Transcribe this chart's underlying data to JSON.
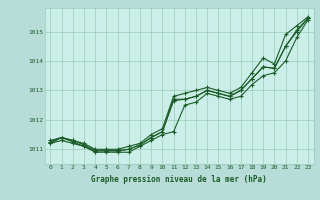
{
  "title": "Graphe pression niveau de la mer (hPa)",
  "background_color": "#b8ddd8",
  "plot_background": "#cceee8",
  "grid_color": "#99ccbb",
  "line_color": "#1a5c28",
  "xlim": [
    -0.5,
    23.5
  ],
  "ylim": [
    1010.5,
    1015.8
  ],
  "yticks": [
    1011,
    1012,
    1013,
    1014,
    1015
  ],
  "x_labels": [
    "0",
    "1",
    "2",
    "3",
    "4",
    "5",
    "6",
    "7",
    "8",
    "9",
    "10",
    "11",
    "12",
    "13",
    "14",
    "15",
    "16",
    "17",
    "18",
    "19",
    "20",
    "21",
    "22",
    "23"
  ],
  "series_min": [
    1011.2,
    1011.3,
    1011.2,
    1011.1,
    1010.9,
    1010.9,
    1010.9,
    1010.9,
    1011.1,
    1011.3,
    1011.5,
    1011.6,
    1012.5,
    1012.6,
    1012.9,
    1012.8,
    1012.7,
    1012.8,
    1013.2,
    1013.5,
    1013.6,
    1014.0,
    1014.8,
    1015.4
  ],
  "series_max": [
    1011.3,
    1011.4,
    1011.3,
    1011.2,
    1011.0,
    1011.0,
    1011.0,
    1011.1,
    1011.2,
    1011.5,
    1011.7,
    1012.8,
    1012.9,
    1013.0,
    1013.1,
    1013.0,
    1012.9,
    1013.1,
    1013.6,
    1014.1,
    1013.9,
    1014.9,
    1015.2,
    1015.5
  ],
  "series_mean1": [
    1011.2,
    1011.4,
    1011.3,
    1011.15,
    1010.95,
    1010.95,
    1010.95,
    1011.0,
    1011.15,
    1011.4,
    1011.6,
    1012.7,
    1012.7,
    1012.8,
    1013.0,
    1012.9,
    1012.8,
    1013.0,
    1013.4,
    1013.8,
    1013.75,
    1014.5,
    1015.0,
    1015.45
  ],
  "series_mean2": [
    1011.25,
    1011.4,
    1011.25,
    1011.1,
    1010.95,
    1010.95,
    1010.95,
    1011.0,
    1011.15,
    1011.4,
    1011.6,
    1012.65,
    1012.7,
    1012.8,
    1013.0,
    1012.9,
    1012.8,
    1013.0,
    1013.4,
    1013.8,
    1013.75,
    1014.5,
    1015.05,
    1015.45
  ]
}
